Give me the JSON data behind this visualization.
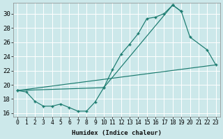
{
  "xlabel": "Humidex (Indice chaleur)",
  "bg_color": "#cce8ea",
  "line_color": "#1a7a6e",
  "grid_color": "#ffffff",
  "xlim": [
    -0.5,
    23.5
  ],
  "ylim": [
    15.5,
    31.5
  ],
  "yticks": [
    16,
    18,
    20,
    22,
    24,
    26,
    28,
    30
  ],
  "xticks": [
    0,
    1,
    2,
    3,
    4,
    5,
    6,
    7,
    8,
    9,
    10,
    11,
    12,
    13,
    14,
    15,
    16,
    17,
    18,
    19,
    20,
    21,
    22,
    23
  ],
  "line1_x": [
    0,
    1,
    2,
    3,
    4,
    5,
    6,
    7,
    8,
    9,
    10,
    11,
    12,
    13,
    14,
    15,
    16,
    17,
    18,
    19
  ],
  "line1_y": [
    19.2,
    19.0,
    17.7,
    17.0,
    17.0,
    17.3,
    16.8,
    16.3,
    16.3,
    17.6,
    19.6,
    22.1,
    24.3,
    25.7,
    27.2,
    29.3,
    29.5,
    30.0,
    31.2,
    30.3
  ],
  "line2_x": [
    0,
    10,
    18,
    19,
    20,
    22,
    23
  ],
  "line2_y": [
    19.2,
    19.6,
    31.2,
    30.3,
    26.7,
    24.9,
    22.8
  ],
  "line3_x": [
    0,
    23
  ],
  "line3_y": [
    19.2,
    22.8
  ],
  "line3_no_marker": true
}
